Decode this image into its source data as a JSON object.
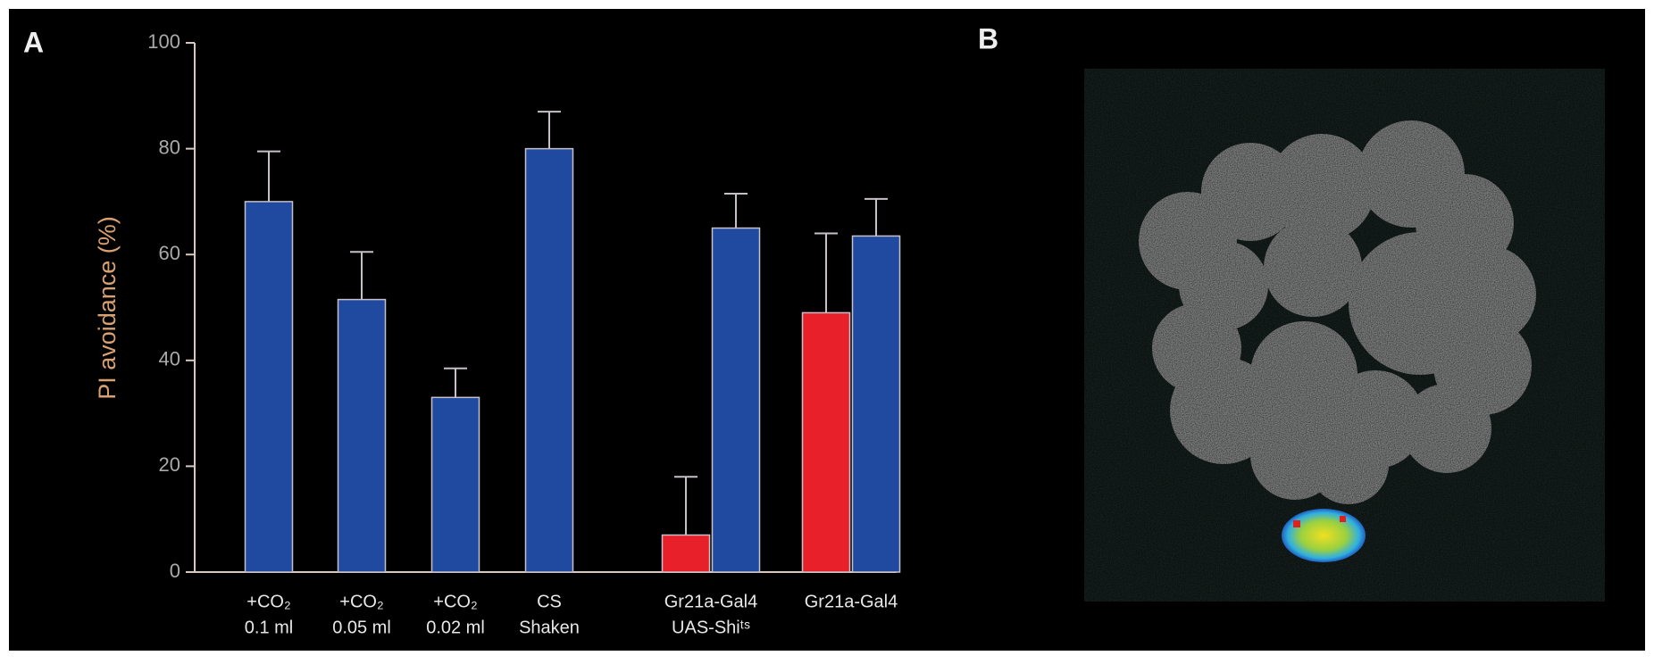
{
  "panel_labels": [
    "A",
    "B"
  ],
  "chart_data": {
    "type": "bar",
    "y_label": "PI avoidance (%)",
    "categories": [
      [
        "+CO₂",
        "0.1 ml"
      ],
      [
        "+CO₂",
        "0.05 ml"
      ],
      [
        "+CO₂",
        "0.02 ml"
      ],
      [
        "CS",
        "Shaken"
      ],
      [
        "Gr21a-Gal4",
        "UAS-Shiᵗˢ"
      ],
      [
        "Gr21a-Gal4"
      ]
    ],
    "series": [
      {
        "color": "#e8202a",
        "values": [
          null,
          null,
          null,
          null,
          7,
          49
        ],
        "errors": [
          null,
          null,
          null,
          null,
          11,
          15
        ]
      },
      {
        "color": "#1f4aa0",
        "values": [
          70,
          51.5,
          33,
          80,
          65,
          63.5
        ],
        "errors": [
          9.5,
          9,
          5.5,
          7,
          6.5,
          7
        ]
      }
    ],
    "ylim": [
      0,
      100
    ],
    "yticks": [
      0,
      20,
      40,
      60,
      80,
      100
    ]
  }
}
